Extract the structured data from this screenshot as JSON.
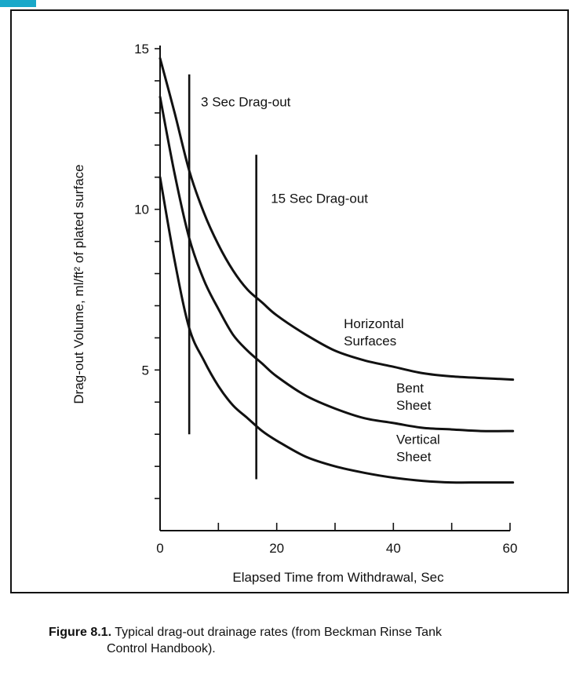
{
  "chart_data": {
    "type": "line",
    "xlabel": "Elapsed Time from Withdrawal, Sec",
    "ylabel": "Drag-out Volume, ml/ft² of plated surface",
    "xlim": [
      0,
      62
    ],
    "ylim": [
      0,
      15
    ],
    "x_major_ticks": [
      0,
      20,
      40,
      60
    ],
    "x_minor_ticks": [
      10,
      30,
      50
    ],
    "y_major_ticks": [
      5,
      10,
      15
    ],
    "y_minor_ticks": [
      1,
      2,
      3,
      4,
      6,
      7,
      8,
      9,
      11,
      12,
      13,
      14
    ],
    "grid": false,
    "vertical_markers": [
      {
        "label": "3 Sec Drag-out",
        "x": 5,
        "y_range": [
          3.0,
          14.2
        ],
        "label_at": [
          7,
          13.2
        ]
      },
      {
        "label": "15 Sec Drag-out",
        "x": 16.5,
        "y_range": [
          1.6,
          11.7
        ],
        "label_at": [
          19,
          10.2
        ]
      }
    ],
    "series": [
      {
        "name": "Horizontal Surfaces",
        "label_lines": [
          "Horizontal",
          "Surfaces"
        ],
        "label_at": [
          31.5,
          6.3
        ],
        "x": [
          0,
          2.5,
          5,
          7.5,
          10,
          12.5,
          15,
          17.5,
          20,
          25,
          30,
          35,
          40,
          45,
          50,
          55,
          62
        ],
        "y": [
          14.7,
          13.0,
          11.2,
          9.9,
          8.9,
          8.1,
          7.5,
          7.1,
          6.7,
          6.1,
          5.6,
          5.3,
          5.1,
          4.9,
          4.8,
          4.75,
          4.7
        ]
      },
      {
        "name": "Bent Sheet",
        "label_lines": [
          "Bent",
          "Sheet"
        ],
        "label_at": [
          40.5,
          4.3
        ],
        "x": [
          0,
          2.5,
          5,
          7.5,
          10,
          12.5,
          15,
          17.5,
          20,
          25,
          30,
          35,
          40,
          45,
          50,
          55,
          62
        ],
        "y": [
          13.5,
          11.1,
          9.1,
          7.8,
          6.9,
          6.1,
          5.6,
          5.2,
          4.8,
          4.2,
          3.8,
          3.5,
          3.35,
          3.2,
          3.15,
          3.1,
          3.1
        ]
      },
      {
        "name": "Vertical Sheet",
        "label_lines": [
          "Vertical",
          "Sheet"
        ],
        "label_at": [
          40.5,
          2.7
        ],
        "x": [
          0,
          2.5,
          5,
          7.5,
          10,
          12.5,
          15,
          17.5,
          20,
          25,
          30,
          35,
          40,
          45,
          50,
          55,
          62
        ],
        "y": [
          11.0,
          8.4,
          6.3,
          5.3,
          4.5,
          3.9,
          3.5,
          3.1,
          2.8,
          2.3,
          2.0,
          1.8,
          1.65,
          1.55,
          1.5,
          1.5,
          1.5
        ]
      }
    ]
  },
  "caption": {
    "figure_label": "Figure 8.1.",
    "text_line1": "Typical drag-out drainage rates (from Beckman Rinse Tank",
    "text_line2": "Control Handbook)."
  }
}
